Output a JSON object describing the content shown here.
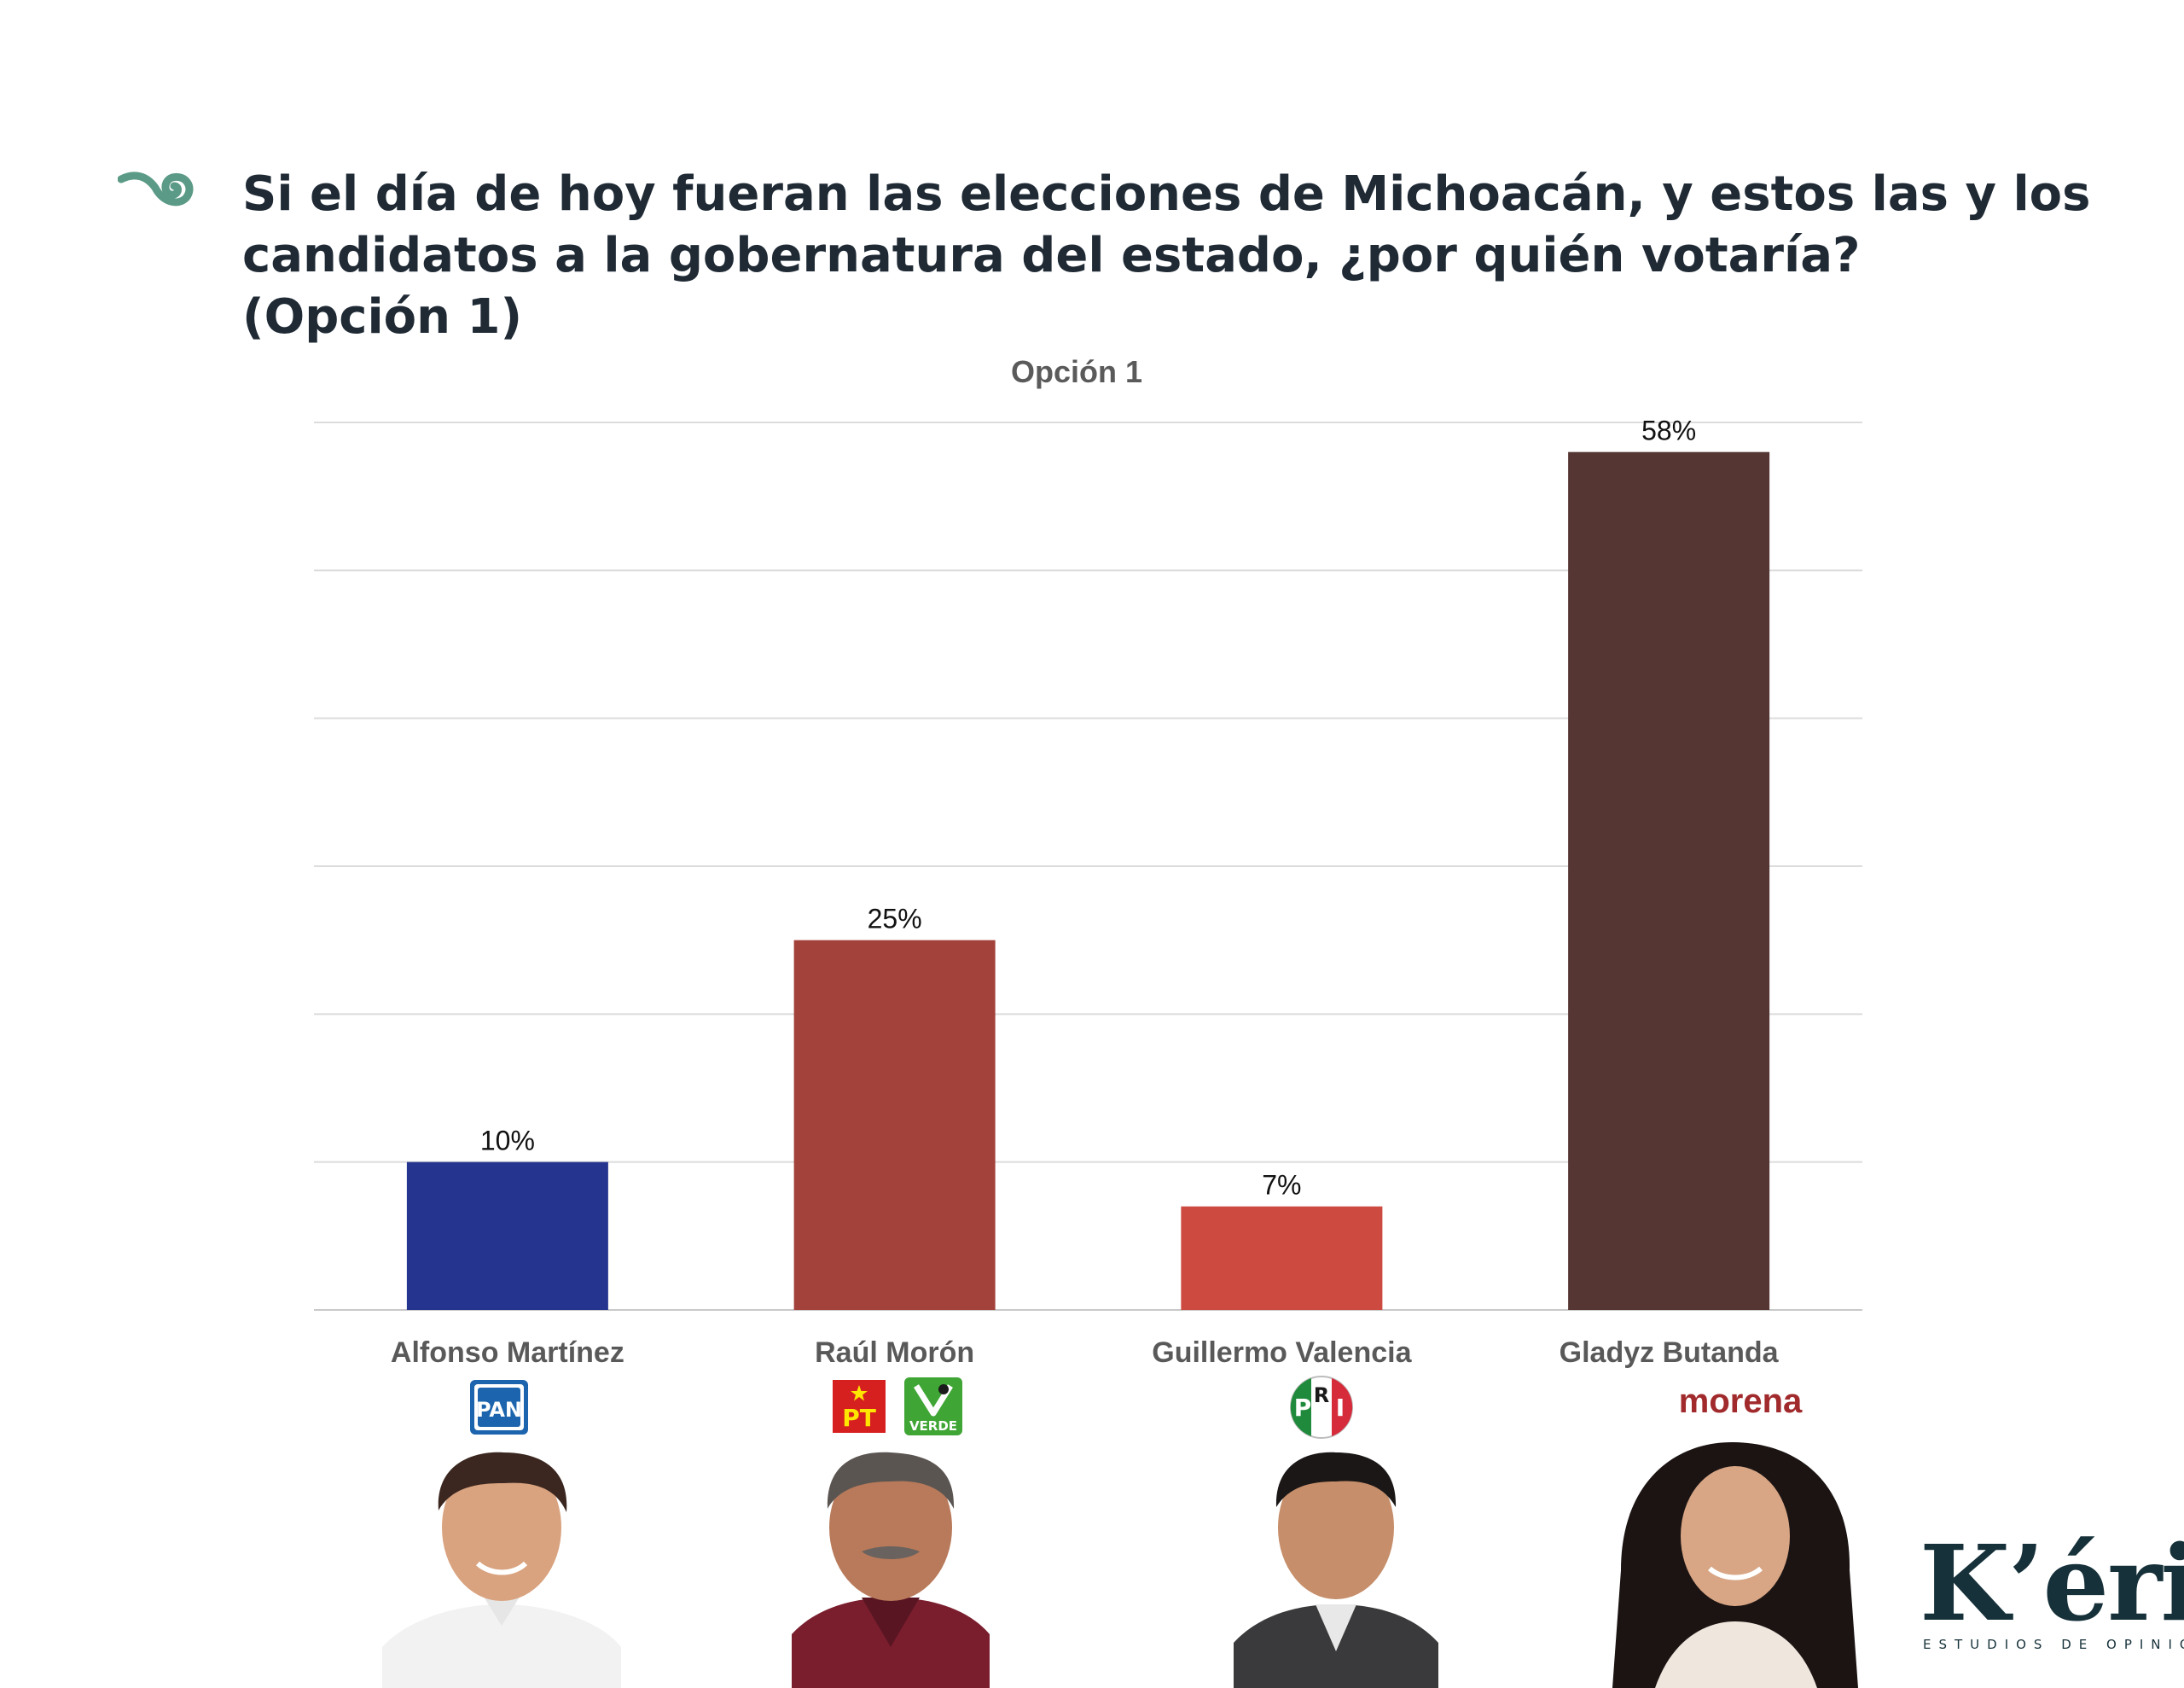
{
  "headline": {
    "line1": "Si el día de hoy fueran las elecciones de Michoacán, y estos las y los",
    "line2": "candidatos a la gobernatura del estado, ¿por quién votaría?",
    "line3": "(Opción 1)"
  },
  "chart_data": {
    "type": "bar",
    "title": "Opción 1",
    "categories": [
      "Alfonso Martínez",
      "Raúl Morón",
      "Guillermo Valencia",
      "Gladyz Butanda"
    ],
    "values": [
      10,
      25,
      7,
      58
    ],
    "data_labels": [
      "10%",
      "25%",
      "7%",
      "58%"
    ],
    "colors": [
      "#25348f",
      "#a3413b",
      "#cc4a40",
      "#563633"
    ],
    "ylim": [
      0,
      60
    ],
    "grid": true,
    "xlabel": "",
    "ylabel": ""
  },
  "party_logos": {
    "pan": "PAN",
    "pt": "PT",
    "verde": "VERDE",
    "pri_r": "R",
    "morena": "morena"
  },
  "colors": {
    "headline": "#1f2a35",
    "accent_green": "#5b9a86",
    "pan_blue": "#1c64ad",
    "pt_red": "#d6201f",
    "verde_green": "#3fa535",
    "pri_red": "#d52b3b",
    "morena": "#a12a2c"
  },
  "brand": {
    "name": "K’éri",
    "tagline": "ESTUDIOS DE OPINIÓN"
  },
  "icons": [
    "swirl-icon",
    "pan-logo",
    "pt-logo",
    "verde-logo",
    "pri-logo",
    "morena-logo"
  ]
}
